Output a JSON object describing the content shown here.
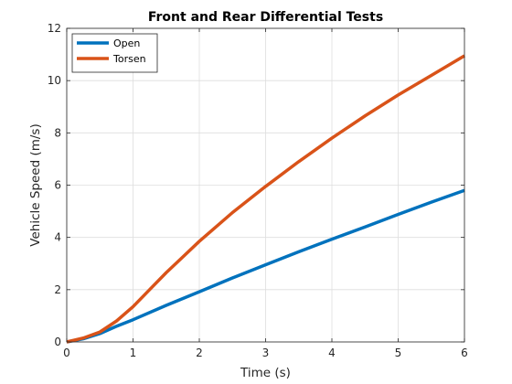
{
  "chart_data": {
    "type": "line",
    "title": "Front and Rear Differential Tests",
    "xlabel": "Time (s)",
    "ylabel": "Vehicle Speed (m/s)",
    "xlim": [
      0,
      6
    ],
    "ylim": [
      0,
      12
    ],
    "xticks": [
      0,
      1,
      2,
      3,
      4,
      5,
      6
    ],
    "yticks": [
      0,
      2,
      4,
      6,
      8,
      10,
      12
    ],
    "grid": true,
    "legend_position": "top-left",
    "series": [
      {
        "name": "Open",
        "color": "#0072BD",
        "x": [
          0,
          0.25,
          0.5,
          0.75,
          1,
          1.5,
          2,
          2.5,
          3,
          3.5,
          4,
          4.5,
          5,
          5.5,
          6
        ],
        "y": [
          0,
          0.12,
          0.32,
          0.6,
          0.85,
          1.4,
          1.92,
          2.45,
          2.95,
          3.45,
          3.93,
          4.4,
          4.88,
          5.35,
          5.8
        ]
      },
      {
        "name": "Torsen",
        "color": "#D95319",
        "x": [
          0,
          0.25,
          0.5,
          0.75,
          1,
          1.25,
          1.5,
          1.75,
          2,
          2.5,
          3,
          3.5,
          4,
          4.5,
          5,
          5.5,
          6
        ],
        "y": [
          0,
          0.15,
          0.38,
          0.8,
          1.35,
          2.0,
          2.65,
          3.25,
          3.85,
          4.95,
          5.95,
          6.9,
          7.8,
          8.65,
          9.45,
          10.2,
          10.95
        ]
      }
    ]
  }
}
